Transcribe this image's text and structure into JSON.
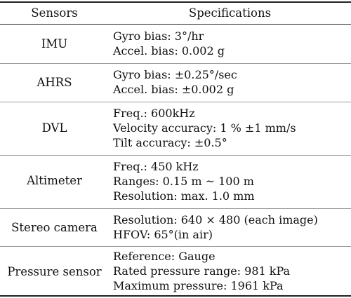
{
  "table": {
    "headers": {
      "sensors": "Sensors",
      "specifications": "Specifications"
    },
    "rows": [
      {
        "sensor": "IMU",
        "specs": [
          "Gyro bias: 3°/hr",
          "Accel. bias: 0.002 g"
        ]
      },
      {
        "sensor": "AHRS",
        "specs": [
          "Gyro bias: ±0.25°/sec",
          "Accel. bias: ±0.002 g"
        ]
      },
      {
        "sensor": "DVL",
        "specs": [
          "Freq.: 600kHz",
          "Velocity accuracy: 1 % ±1 mm/s",
          "Tilt accuracy: ±0.5°"
        ]
      },
      {
        "sensor": "Altimeter",
        "specs": [
          "Freq.: 450 kHz",
          "Ranges: 0.15 m ~ 100 m",
          "Resolution: max. 1.0 mm"
        ]
      },
      {
        "sensor": "Stereo camera",
        "specs": [
          "Resolution: 640 × 480 (each image)",
          "HFOV: 65°(in air)"
        ]
      },
      {
        "sensor": "Pressure sensor",
        "specs": [
          "Reference: Gauge",
          "Rated pressure range: 981 kPa",
          "Maximum pressure: 1961 kPa"
        ]
      }
    ]
  }
}
